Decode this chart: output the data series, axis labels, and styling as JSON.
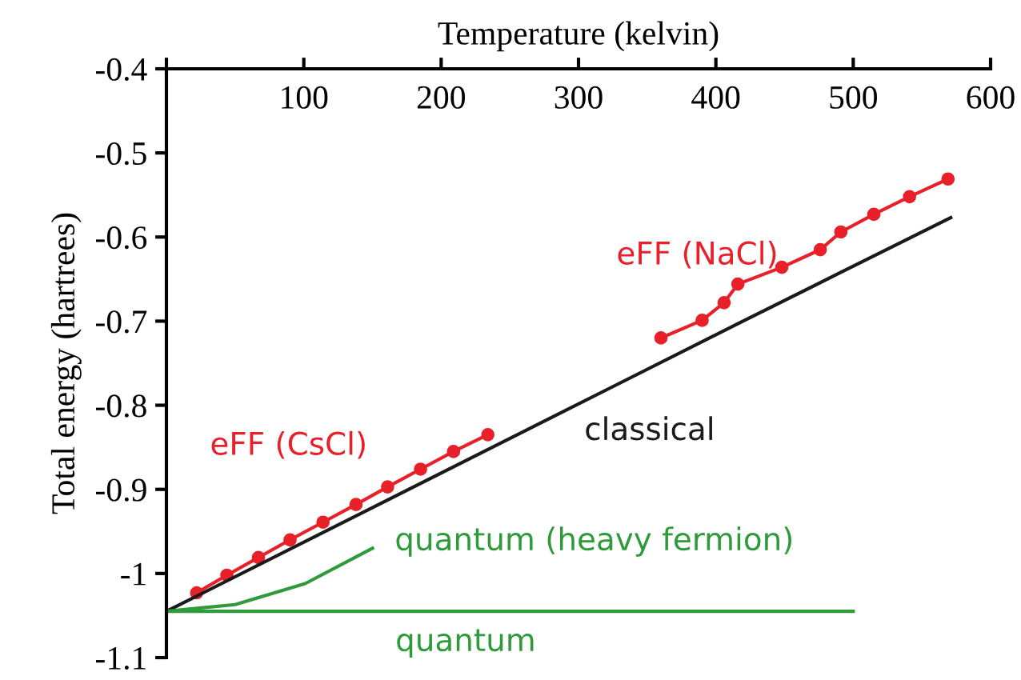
{
  "chart_data": {
    "type": "line",
    "xlabel": "Temperature (kelvin)",
    "ylabel": "Total energy (hartrees)",
    "xlim": [
      0,
      600
    ],
    "xticks": [
      {
        "value": 0,
        "label": null
      },
      100,
      200,
      300,
      400,
      500,
      600
    ],
    "ylim": [
      -1.1,
      -0.4
    ],
    "yticks": [
      {
        "value": -1.1,
        "label": "-1.1"
      },
      {
        "value": -1.0,
        "label": "-1"
      },
      {
        "value": -0.9,
        "label": "-0.9"
      },
      {
        "value": -0.8,
        "label": "-0.8"
      },
      {
        "value": -0.7,
        "label": "-0.7"
      },
      {
        "value": -0.6,
        "label": "-0.6"
      },
      {
        "value": -0.5,
        "label": "-0.5"
      },
      {
        "value": -0.4,
        "label": "-0.4"
      }
    ],
    "grid": false,
    "legend": false,
    "series": [
      {
        "name": "eFF (CsCl)",
        "color": "#e8202a",
        "marker": "circle",
        "x": [
          22,
          44,
          67,
          90,
          114,
          138,
          161,
          185,
          209,
          234
        ],
        "values": [
          -1.023,
          -1.002,
          -0.981,
          -0.96,
          -0.939,
          -0.918,
          -0.897,
          -0.876,
          -0.855,
          -0.835
        ]
      },
      {
        "name": "eFF (NaCl)",
        "color": "#e8202a",
        "marker": "circle",
        "x": [
          360,
          390,
          406,
          416,
          448,
          476,
          491,
          515,
          541,
          569
        ],
        "values": [
          -0.72,
          -0.699,
          -0.678,
          -0.656,
          -0.636,
          -0.615,
          -0.594,
          -0.573,
          -0.552,
          -0.531
        ]
      },
      {
        "name": "classical",
        "color": "#1a1a1a",
        "marker": "none",
        "x": [
          0,
          416,
          491,
          571
        ],
        "values": [
          -1.045,
          -0.703,
          -0.642,
          -0.577
        ]
      },
      {
        "name": "quantum (heavy fermion)",
        "color": "#2e9a3a",
        "marker": "none",
        "x": [
          0,
          50,
          101,
          150
        ],
        "values": [
          -1.045,
          -1.037,
          -1.012,
          -0.97
        ]
      },
      {
        "name": "quantum",
        "color": "#2e9a3a",
        "marker": "none",
        "x": [
          0,
          500
        ],
        "values": [
          -1.045,
          -1.045
        ]
      }
    ]
  }
}
